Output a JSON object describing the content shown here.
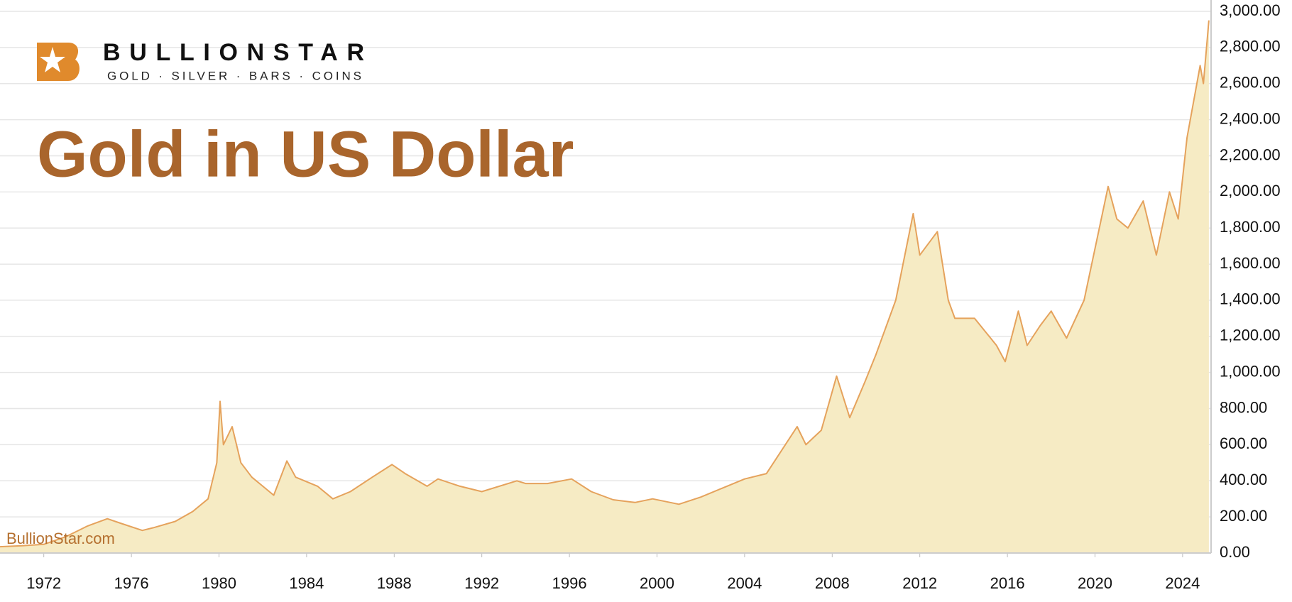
{
  "chart_data": {
    "type": "area",
    "title": "Gold in US Dollar",
    "brand": "BULLIONSTAR",
    "tagline": "GOLD · SILVER · BARS · COINS",
    "watermark": "BullionStar.com",
    "color": "#e5a25c",
    "fill_color": "#f6ebc4",
    "grid": true,
    "xlim": [
      1970.0,
      2025.3
    ],
    "xticks": [
      1972,
      1976,
      1980,
      1984,
      1988,
      1992,
      1996,
      2000,
      2004,
      2008,
      2012,
      2016,
      2020,
      2024
    ],
    "ylim": [
      0,
      3000
    ],
    "yticks": [
      {
        "value": 0,
        "label": "0.00"
      },
      {
        "value": 200,
        "label": "200.00"
      },
      {
        "value": 400,
        "label": "400.00"
      },
      {
        "value": 600,
        "label": "600.00"
      },
      {
        "value": 800,
        "label": "800.00"
      },
      {
        "value": 1000,
        "label": "1,000.00"
      },
      {
        "value": 1200,
        "label": "1,200.00"
      },
      {
        "value": 1400,
        "label": "1,400.00"
      },
      {
        "value": 1600,
        "label": "1,600.00"
      },
      {
        "value": 1800,
        "label": "1,800.00"
      },
      {
        "value": 2000,
        "label": "2,000.00"
      },
      {
        "value": 2200,
        "label": "2,200.00"
      },
      {
        "value": 2400,
        "label": "2,400.00"
      },
      {
        "value": 2600,
        "label": "2,600.00"
      },
      {
        "value": 2800,
        "label": "2,800.00"
      },
      {
        "value": 3000,
        "label": "3,000.00"
      }
    ],
    "x": [
      1970.0,
      1971,
      1972,
      1973,
      1973.5,
      1974,
      1974.9,
      1975.5,
      1976.5,
      1977,
      1978,
      1978.8,
      1979.5,
      1979.9,
      1980.05,
      1980.2,
      1980.6,
      1981,
      1981.5,
      1982.5,
      1983.1,
      1983.5,
      1984.5,
      1985.2,
      1986,
      1987,
      1987.9,
      1988.5,
      1989.5,
      1990,
      1991,
      1992,
      1993.6,
      1994,
      1995,
      1996.1,
      1997,
      1998,
      1999,
      1999.8,
      2001,
      2002,
      2003,
      2004,
      2005,
      2006.4,
      2006.8,
      2007.5,
      2008.2,
      2008.8,
      2009.5,
      2010,
      2010.9,
      2011.7,
      2012,
      2012.8,
      2013.3,
      2013.6,
      2014.5,
      2015.5,
      2015.9,
      2016.5,
      2016.9,
      2017.5,
      2018,
      2018.7,
      2019.5,
      2020.6,
      2021,
      2021.5,
      2022.2,
      2022.8,
      2023.4,
      2023.8,
      2024.2,
      2024.8,
      2024.95,
      2025.2
    ],
    "values": [
      35,
      40,
      48,
      90,
      120,
      150,
      190,
      165,
      125,
      140,
      175,
      230,
      300,
      500,
      840,
      600,
      700,
      500,
      420,
      320,
      510,
      420,
      370,
      300,
      340,
      420,
      490,
      440,
      370,
      410,
      370,
      340,
      400,
      385,
      385,
      410,
      340,
      295,
      280,
      300,
      270,
      310,
      360,
      410,
      440,
      700,
      600,
      680,
      980,
      750,
      950,
      1100,
      1400,
      1880,
      1650,
      1780,
      1400,
      1300,
      1300,
      1150,
      1060,
      1340,
      1150,
      1260,
      1340,
      1190,
      1400,
      2030,
      1850,
      1800,
      1950,
      1650,
      2000,
      1850,
      2300,
      2700,
      2600,
      2950
    ]
  }
}
